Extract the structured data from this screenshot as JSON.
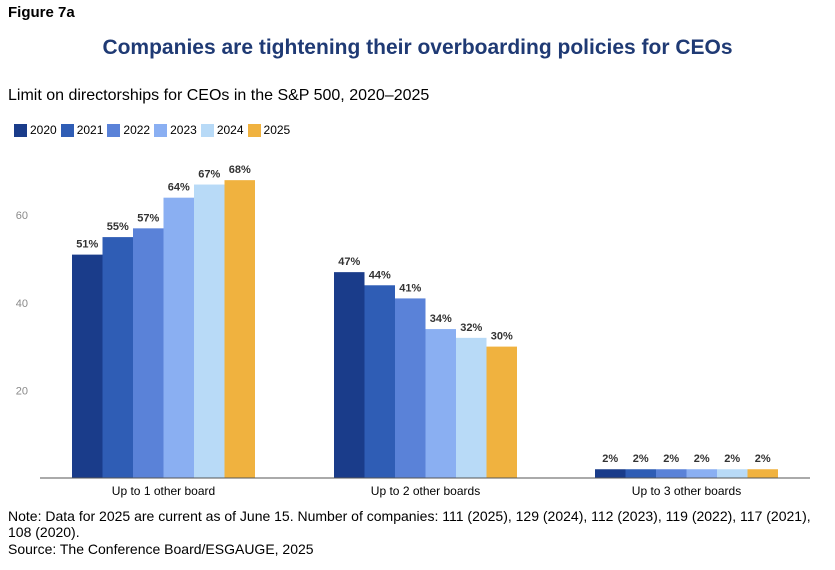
{
  "figure_label": "Figure 7a",
  "title": "Companies are tightening their overboarding policies for CEOs",
  "subtitle": "Limit on directorships for CEOs in the S&P 500, 2020–2025",
  "note": "Note: Data for 2025 are current as of June 15. Number of companies: 111 (2025), 129 (2024), 112 (2023), 119 (2022), 117 (2021), 108 (2020).",
  "source": "Source: The Conference Board/ESGAUGE, 2025",
  "chart_data": {
    "type": "bar",
    "categories": [
      "Up to 1 other board",
      "Up to 2 other boards",
      "Up to 3 other boards"
    ],
    "series": [
      {
        "name": "2020",
        "color": "#1a3c8a",
        "values": [
          51,
          47,
          2
        ]
      },
      {
        "name": "2021",
        "color": "#2f5db5",
        "values": [
          55,
          44,
          2
        ]
      },
      {
        "name": "2022",
        "color": "#5a82d8",
        "values": [
          57,
          41,
          2
        ]
      },
      {
        "name": "2023",
        "color": "#8aaff2",
        "values": [
          64,
          34,
          2
        ]
      },
      {
        "name": "2024",
        "color": "#b8daf7",
        "values": [
          67,
          32,
          2
        ]
      },
      {
        "name": "2025",
        "color": "#f0b23f",
        "values": [
          68,
          30,
          2
        ]
      }
    ],
    "data_labels": [
      [
        "51%",
        "55%",
        "57%",
        "64%",
        "67%",
        "68%"
      ],
      [
        "47%",
        "44%",
        "41%",
        "34%",
        "32%",
        "30%"
      ],
      [
        "2%",
        "2%",
        "2%",
        "2%",
        "2%",
        "2%"
      ]
    ],
    "yticks": [
      "20",
      "40",
      "60"
    ],
    "ylim": [
      0,
      70
    ],
    "grid": false,
    "legend": "top-left"
  }
}
